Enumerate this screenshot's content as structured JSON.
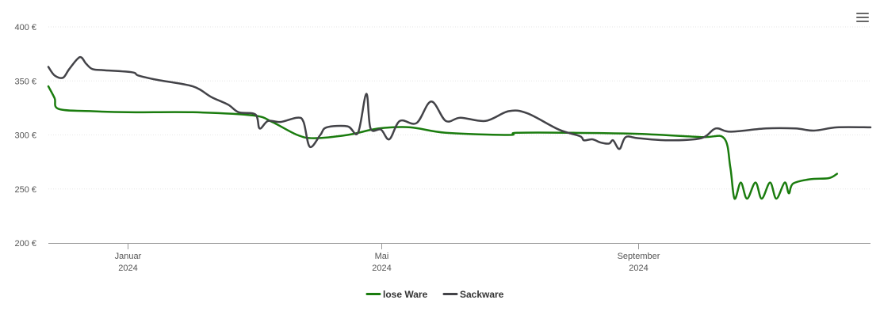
{
  "chart_data": {
    "type": "line",
    "y_axis": {
      "min": 200,
      "max": 400,
      "ticks": [
        "200 €",
        "250 €",
        "300 €",
        "350 €",
        "400 €"
      ],
      "tick_values": [
        200,
        250,
        300,
        350,
        400
      ]
    },
    "x_axis": {
      "start": "2023-11-24",
      "end": "2024-12-21",
      "ticks": [
        {
          "date": "2024-01-01",
          "month": "Januar",
          "year": "2024"
        },
        {
          "date": "2024-05-01",
          "month": "Mai",
          "year": "2024"
        },
        {
          "date": "2024-09-01",
          "month": "September",
          "year": "2024"
        }
      ]
    },
    "grid": true,
    "legend_position": "bottom",
    "series": [
      {
        "name": "lose Ware",
        "color": "#1a7c0e",
        "points": [
          [
            "2023-11-24",
            345
          ],
          [
            "2023-11-27",
            334
          ],
          [
            "2023-11-29",
            324
          ],
          [
            "2023-12-15",
            322
          ],
          [
            "2024-01-01",
            321
          ],
          [
            "2024-02-01",
            321
          ],
          [
            "2024-03-01",
            318
          ],
          [
            "2024-03-10",
            312
          ],
          [
            "2024-03-22",
            300
          ],
          [
            "2024-03-30",
            297
          ],
          [
            "2024-04-15",
            300
          ],
          [
            "2024-04-30",
            306
          ],
          [
            "2024-05-15",
            307
          ],
          [
            "2024-06-01",
            302
          ],
          [
            "2024-07-01",
            300
          ],
          [
            "2024-07-05",
            302
          ],
          [
            "2024-08-01",
            302
          ],
          [
            "2024-09-01",
            301
          ],
          [
            "2024-10-01",
            298
          ],
          [
            "2024-10-12",
            297
          ],
          [
            "2024-10-15",
            270
          ],
          [
            "2024-10-17",
            241
          ],
          [
            "2024-10-20",
            256
          ],
          [
            "2024-10-23",
            241
          ],
          [
            "2024-10-27",
            256
          ],
          [
            "2024-10-30",
            241
          ],
          [
            "2024-11-03",
            256
          ],
          [
            "2024-11-06",
            241
          ],
          [
            "2024-11-10",
            256
          ],
          [
            "2024-11-12",
            246
          ],
          [
            "2024-11-14",
            255
          ],
          [
            "2024-11-22",
            259
          ],
          [
            "2024-12-01",
            260
          ],
          [
            "2024-12-05",
            264
          ]
        ]
      },
      {
        "name": "Sackware",
        "color": "#434348",
        "points": [
          [
            "2023-11-24",
            363
          ],
          [
            "2023-11-27",
            355
          ],
          [
            "2023-12-01",
            353
          ],
          [
            "2023-12-04",
            361
          ],
          [
            "2023-12-09",
            372
          ],
          [
            "2023-12-12",
            366
          ],
          [
            "2023-12-15",
            361
          ],
          [
            "2023-12-20",
            360
          ],
          [
            "2024-01-03",
            358
          ],
          [
            "2024-01-06",
            355
          ],
          [
            "2024-01-15",
            351
          ],
          [
            "2024-02-01",
            345
          ],
          [
            "2024-02-10",
            335
          ],
          [
            "2024-02-18",
            328
          ],
          [
            "2024-02-23",
            321
          ],
          [
            "2024-03-02",
            319
          ],
          [
            "2024-03-04",
            306
          ],
          [
            "2024-03-08",
            313
          ],
          [
            "2024-03-14",
            312
          ],
          [
            "2024-03-22",
            316
          ],
          [
            "2024-03-25",
            312
          ],
          [
            "2024-03-28",
            289
          ],
          [
            "2024-04-02",
            300
          ],
          [
            "2024-04-05",
            307
          ],
          [
            "2024-04-15",
            308
          ],
          [
            "2024-04-20",
            302
          ],
          [
            "2024-04-24",
            338
          ],
          [
            "2024-04-26",
            306
          ],
          [
            "2024-05-01",
            305
          ],
          [
            "2024-05-05",
            296
          ],
          [
            "2024-05-10",
            313
          ],
          [
            "2024-05-18",
            311
          ],
          [
            "2024-05-25",
            331
          ],
          [
            "2024-06-01",
            313
          ],
          [
            "2024-06-08",
            316
          ],
          [
            "2024-06-20",
            313
          ],
          [
            "2024-07-01",
            322
          ],
          [
            "2024-07-10",
            320
          ],
          [
            "2024-07-25",
            305
          ],
          [
            "2024-08-04",
            299
          ],
          [
            "2024-08-06",
            295
          ],
          [
            "2024-08-10",
            296
          ],
          [
            "2024-08-14",
            293
          ],
          [
            "2024-08-18",
            292
          ],
          [
            "2024-08-20",
            295
          ],
          [
            "2024-08-23",
            287
          ],
          [
            "2024-08-26",
            298
          ],
          [
            "2024-09-01",
            297
          ],
          [
            "2024-09-15",
            295
          ],
          [
            "2024-10-01",
            297
          ],
          [
            "2024-10-08",
            306
          ],
          [
            "2024-10-15",
            303
          ],
          [
            "2024-11-01",
            306
          ],
          [
            "2024-11-15",
            306
          ],
          [
            "2024-11-24",
            304
          ],
          [
            "2024-12-05",
            307
          ],
          [
            "2024-12-21",
            307
          ]
        ]
      }
    ]
  },
  "menu": {
    "icon": "hamburger-menu-icon"
  }
}
